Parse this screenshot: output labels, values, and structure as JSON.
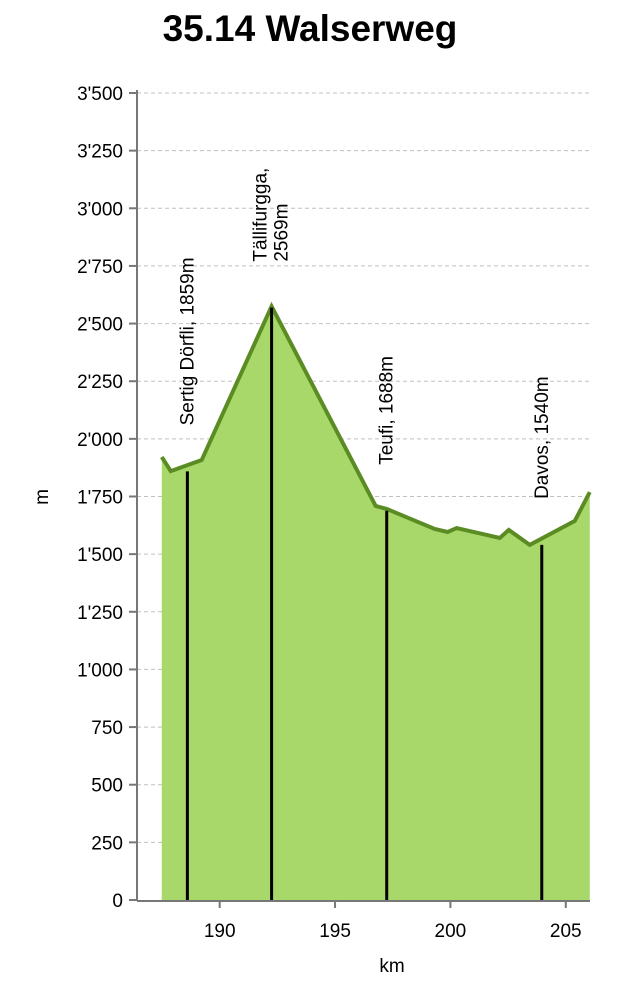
{
  "chart_data": {
    "type": "area",
    "title": "35.14 Walserweg",
    "xlabel": "km",
    "ylabel": "m",
    "xlim": [
      187.5,
      206.05
    ],
    "ylim": [
      0,
      3500
    ],
    "x_ticks": [
      190,
      195,
      200,
      205
    ],
    "x_tick_labels": [
      "190",
      "195",
      "200",
      "205"
    ],
    "y_ticks": [
      0,
      250,
      500,
      750,
      1000,
      1250,
      1500,
      1750,
      2000,
      2250,
      2500,
      2750,
      3000,
      3250,
      3500
    ],
    "y_tick_labels": [
      "0",
      "250",
      "500",
      "750",
      "1'000",
      "1'250",
      "1'500",
      "1'750",
      "2'000",
      "2'250",
      "2'500",
      "2'750",
      "3'000",
      "3'250",
      "3'500"
    ],
    "grid": "horizontal-dashed",
    "series": [
      {
        "name": "elevation",
        "x": [
          187.49,
          187.88,
          189.22,
          192.25,
          196.76,
          197.24,
          199.32,
          199.88,
          200.27,
          202.14,
          202.53,
          203.44,
          205.39,
          206.04
        ],
        "values": [
          1921,
          1860,
          1908,
          2575,
          1709,
          1696,
          1609,
          1596,
          1613,
          1570,
          1605,
          1540,
          1644,
          1769
        ]
      }
    ],
    "annotations": [
      {
        "km": 188.6,
        "elevation": 1859,
        "lines": [
          "Sertig Dörfli, 1859m"
        ]
      },
      {
        "km": 192.25,
        "elevation": 2569,
        "lines": [
          "Tällifurgga,",
          "2569m"
        ]
      },
      {
        "km": 197.24,
        "elevation": 1688,
        "lines": [
          "Teufi, 1688m"
        ]
      },
      {
        "km": 203.96,
        "elevation": 1540,
        "lines": [
          "Davos, 1540m"
        ]
      }
    ],
    "colors": {
      "fill": "#a8d86a",
      "line": "#5b8c24",
      "grid": "#c0c0c0",
      "marker": "#000000"
    }
  }
}
